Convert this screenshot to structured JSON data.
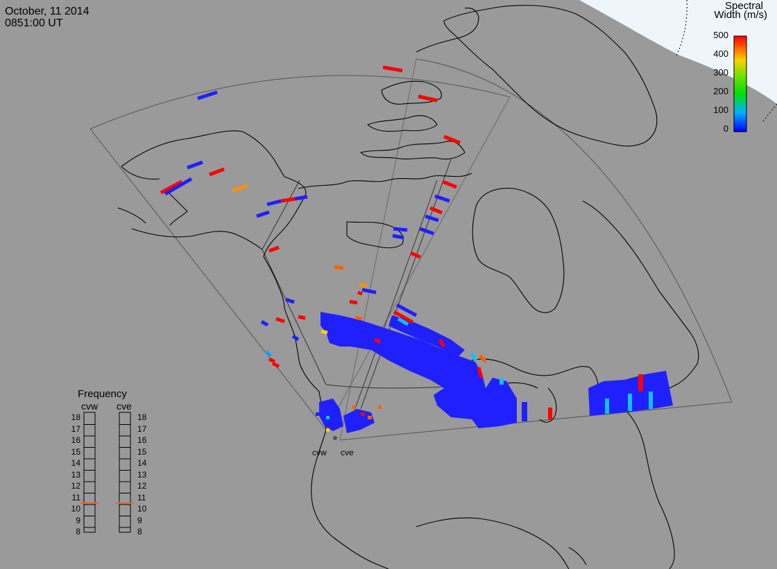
{
  "header": {
    "date": "October, 11 2014",
    "time": "0851:00 UT"
  },
  "colorbar": {
    "title_line1": "Spectral",
    "title_line2": "Width (m/s)",
    "ticks": [
      "500",
      "400",
      "300",
      "200",
      "100",
      "0"
    ],
    "colors": [
      "#ff0000",
      "#ff8000",
      "#ffd000",
      "#00d000",
      "#00e0e0",
      "#0040ff"
    ]
  },
  "frequency": {
    "title": "Frequency",
    "radars": [
      "cvw",
      "cve"
    ],
    "values": [
      "11",
      "11"
    ],
    "scale": [
      "18",
      "17",
      "16",
      "15",
      "14",
      "13",
      "12",
      "11",
      "10",
      "9",
      "8"
    ],
    "marker_color": "#ff6000"
  },
  "radars": {
    "labels": [
      "cvw",
      "cve"
    ]
  },
  "colors": {
    "background": "#9a9a9a",
    "polar_cap": "#eef6fb",
    "coast": "#000000",
    "fov": "#4a4a4a",
    "blue": "#2020ff"
  }
}
